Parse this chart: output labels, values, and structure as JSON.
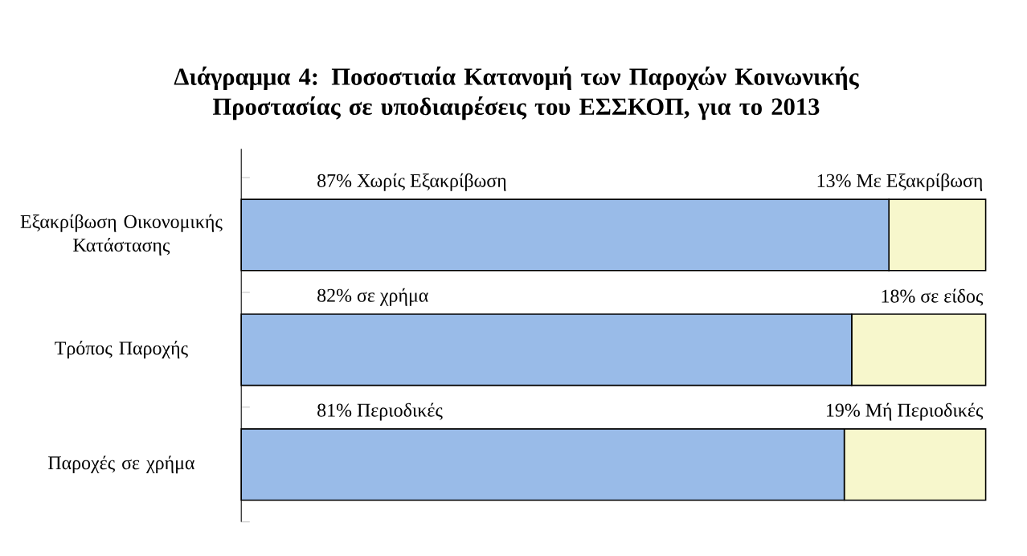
{
  "chart_data": {
    "type": "bar",
    "orientation": "horizontal",
    "stacked": true,
    "title": "Διάγραμμα 4: Ποσοστιαία Κατανομή των Παροχών Κοινωνικής Προστασίας σε υποδιαιρέσεις του ΕΣΣΚΟΠ, για το 2013",
    "categories": [
      "Εξακρίβωση Οικονομικής Κατάστασης",
      "Τρόπος Παροχής",
      "Παροχές σε χρήμα"
    ],
    "xlim": [
      0,
      100
    ],
    "series": [
      {
        "color": "#99bbe8",
        "values": [
          87,
          82,
          81
        ],
        "value_labels": [
          "87% Χωρίς Εξακρίβωση",
          "82% σε χρήμα",
          "81% Περιοδικές"
        ]
      },
      {
        "color": "#f7f7cc",
        "values": [
          13,
          18,
          19
        ],
        "value_labels": [
          "13% Με Εξακρίβωση",
          "18% σε είδος",
          "19% Μή Περιοδικές"
        ]
      }
    ],
    "tick_labels": "y"
  }
}
